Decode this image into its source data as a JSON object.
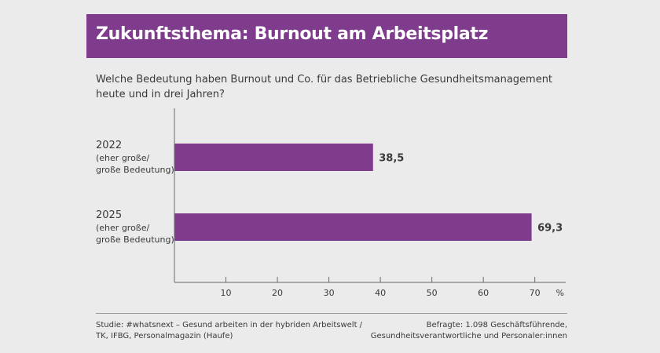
{
  "title": "Zukunftsthema: Burnout am Arbeitsplatz",
  "question": "Welche Bedeutung haben Burnout und Co. für das Betriebliche Gesundheitsmanagement heute und in drei Jahren?",
  "colors": {
    "accent": "#7f3c8d",
    "background": "#ebebeb",
    "text": "#3a3a3a"
  },
  "chart_data": {
    "type": "bar",
    "orientation": "horizontal",
    "categories": [
      {
        "year": "2022",
        "sub1": "(eher große/",
        "sub2": "große Bedeutung)"
      },
      {
        "year": "2025",
        "sub1": "(eher große/",
        "sub2": "große Bedeutung)"
      }
    ],
    "values": [
      38.5,
      69.3
    ],
    "value_labels": [
      "38,5",
      "69,3"
    ],
    "xticks": [
      "10",
      "20",
      "30",
      "40",
      "50",
      "60",
      "70"
    ],
    "xtick_values": [
      10,
      20,
      30,
      40,
      50,
      60,
      70
    ],
    "xunit": "%",
    "xlim": [
      0,
      76
    ],
    "grid": false
  },
  "footer": {
    "source_line1": "Studie: #whatsnext – Gesund arbeiten in der hybriden Arbeitswelt /",
    "source_line2": "TK, IFBG, Personalmagazin (Haufe)",
    "respondents_line1": "Befragte: 1.098 Geschäftsführende,",
    "respondents_line2": "Gesundheitsverantwortliche und Personaler:innen"
  }
}
